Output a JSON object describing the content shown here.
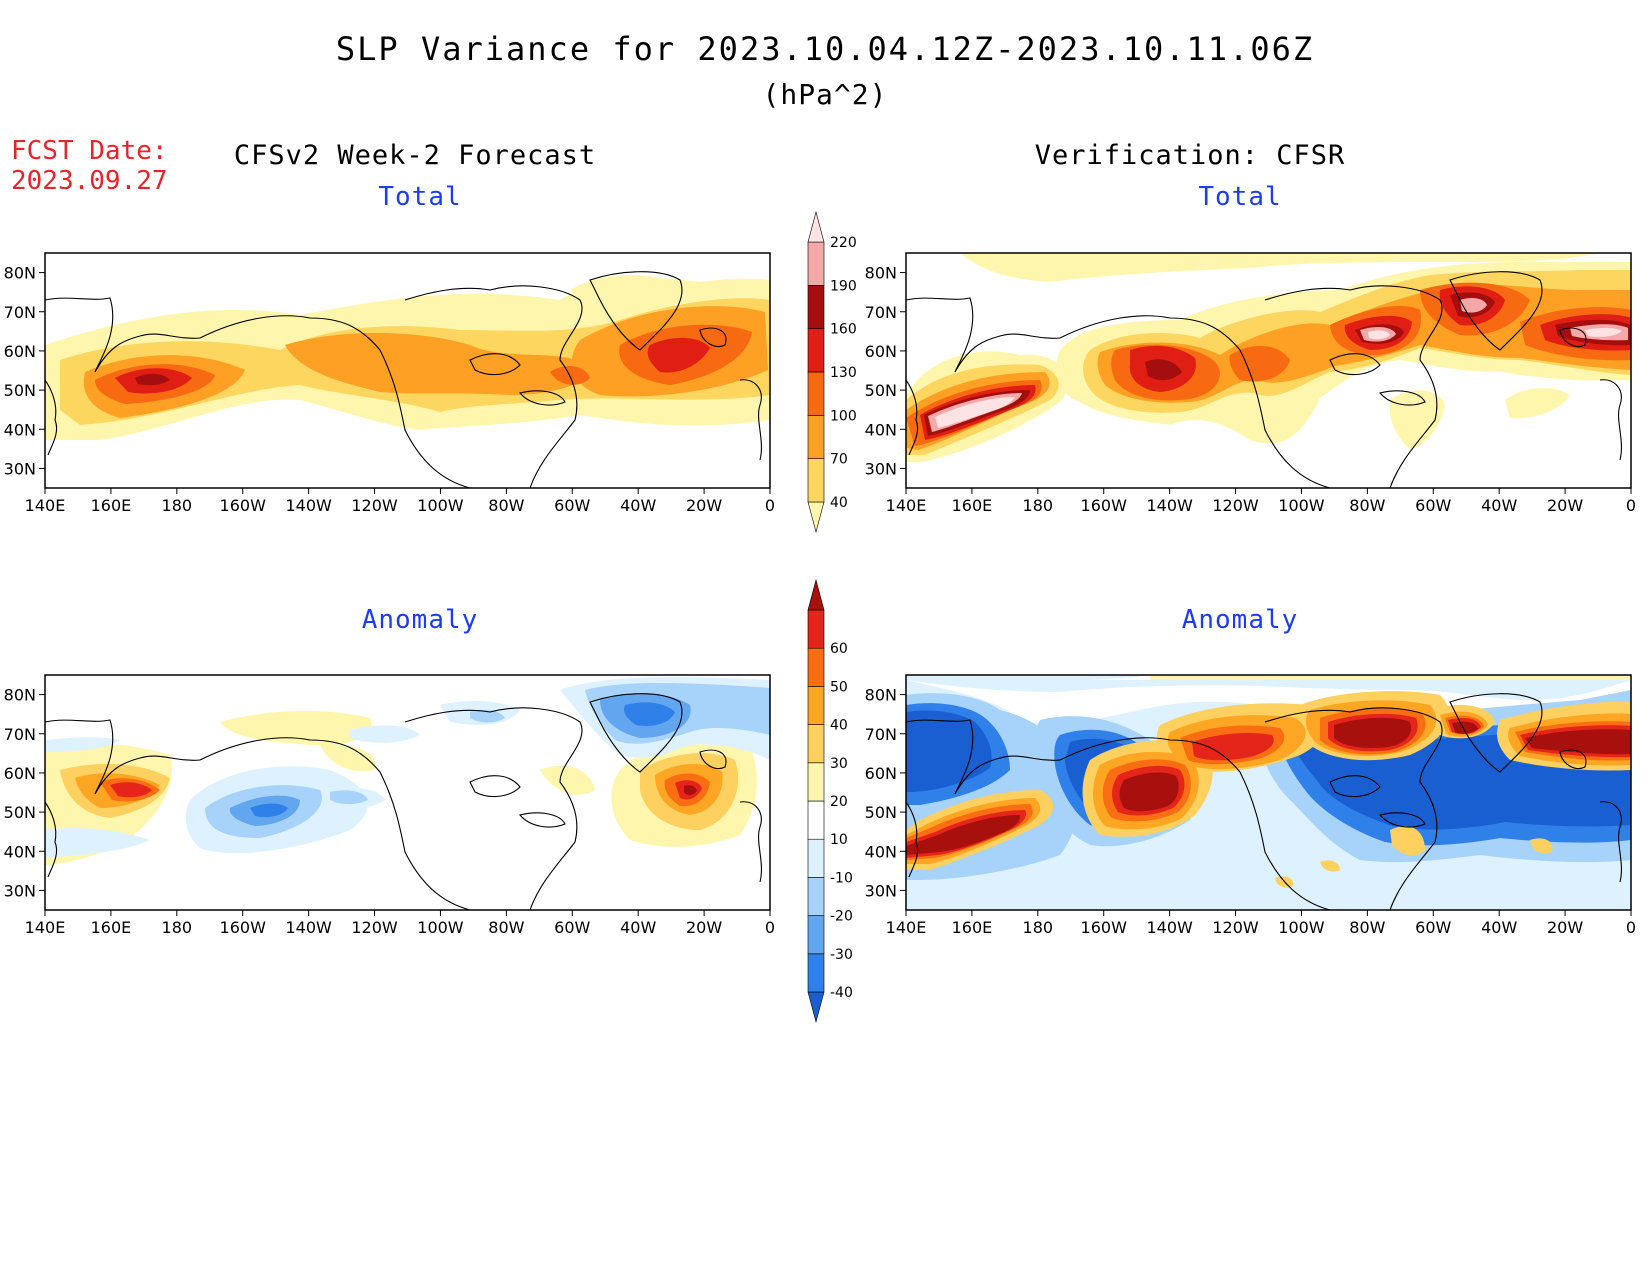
{
  "header": {
    "title": "SLP Variance for 2023.10.04.12Z-2023.10.11.06Z",
    "units": "(hPa^2)",
    "fcst_label": "FCST Date:",
    "fcst_date": "2023.09.27"
  },
  "columns": {
    "left": "CFSv2 Week-2 Forecast",
    "right": "Verification: CFSR"
  },
  "panels": {
    "top_left_title": "Total",
    "top_right_title": "Total",
    "bottom_left_title": "Anomaly",
    "bottom_right_title": "Anomaly"
  },
  "axes": {
    "lat_labels": [
      "80N",
      "70N",
      "60N",
      "50N",
      "40N",
      "30N"
    ],
    "lon_labels": [
      "140E",
      "160E",
      "180",
      "160W",
      "140W",
      "120W",
      "100W",
      "80W",
      "60W",
      "40W",
      "20W",
      "0"
    ]
  },
  "colorbars": {
    "total": {
      "levels": [
        "40",
        "70",
        "100",
        "130",
        "160",
        "190",
        "220"
      ],
      "colors": [
        "#fff6ad",
        "#fdd660",
        "#fda023",
        "#f76a12",
        "#e01e14",
        "#a50e0e",
        "#f4a8a8",
        "#fde3e3"
      ]
    },
    "anomaly": {
      "levels": [
        "-40",
        "-30",
        "-20",
        "-10",
        "10",
        "20",
        "30",
        "40",
        "50",
        "60"
      ],
      "colors": [
        "#1a5fd1",
        "#2f80e8",
        "#62a6f0",
        "#a7d3fa",
        "#ddf2fe",
        "#ffffff",
        "#fff6ad",
        "#fdd060",
        "#fda623",
        "#f96e12",
        "#e5251a",
        "#a8100e"
      ]
    }
  },
  "colors": {
    "title_blue": "#1c3cf0",
    "fcst_red": "#e8232a"
  }
}
